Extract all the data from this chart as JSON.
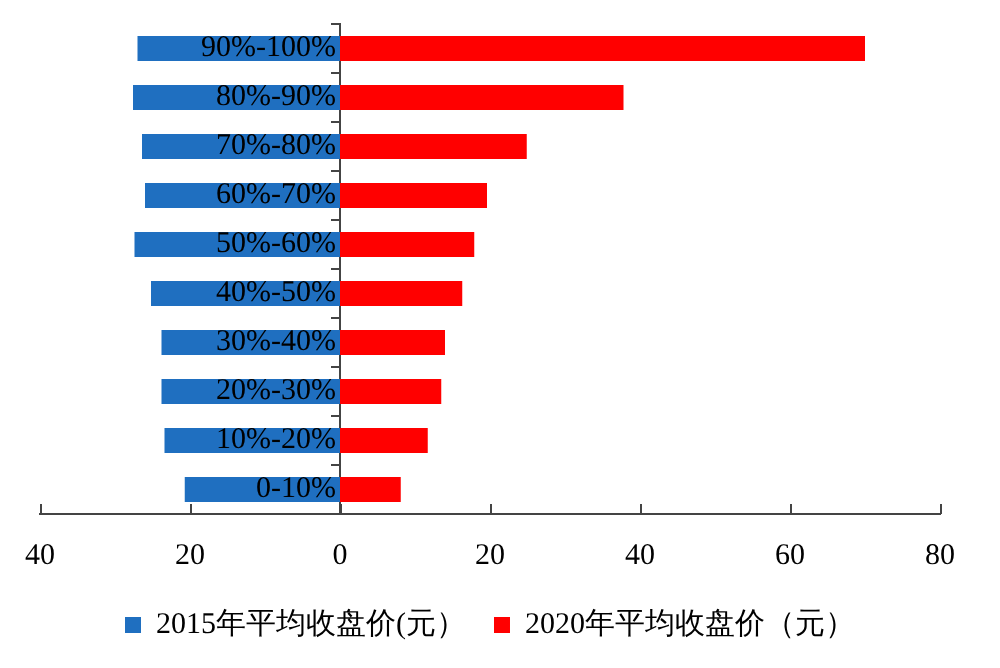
{
  "chart_data": {
    "type": "bar",
    "orientation": "horizontal",
    "categories": [
      "90%-100%",
      "80%-90%",
      "70%-80%",
      "60%-70%",
      "50%-60%",
      "40%-50%",
      "30%-40%",
      "20%-30%",
      "10%-20%",
      "0-10%"
    ],
    "series": [
      {
        "name": "2015年平均收盘价(元）",
        "color": "#1f6fc0",
        "values": [
          -27,
          -27.6,
          -26.4,
          -26,
          -27.4,
          -25.2,
          -23.8,
          -23.8,
          -23.4,
          -20.7
        ]
      },
      {
        "name": "2020年平均收盘价（元）",
        "color": "#ff0000",
        "values": [
          70,
          37.8,
          24.9,
          19.6,
          17.9,
          16.3,
          14,
          13.5,
          11.7,
          8.1
        ]
      }
    ],
    "xlim": [
      -40,
      80
    ],
    "xticks": [
      {
        "value": -40,
        "label": "40"
      },
      {
        "value": -20,
        "label": "20"
      },
      0,
      20,
      40,
      60,
      80
    ],
    "stacked": true,
    "grid": false,
    "legend": "bottom"
  }
}
